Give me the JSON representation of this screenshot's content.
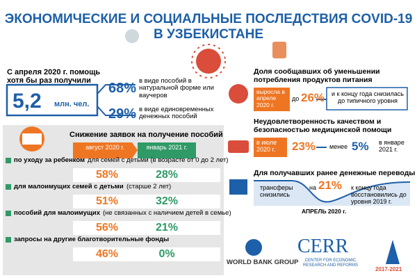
{
  "header": {
    "title_line1": "ЭКОНОМИЧЕСКИЕ  И СОЦИАЛЬНЫЕ ПОСЛЕДСТВИЯ COVID-19",
    "title_line2": "В УЗБЕКИСТАНЕ"
  },
  "assistance": {
    "intro": "С апреля 2020 г. помощь хотя бы раз получили",
    "total": "5,2",
    "unit": "млн. чел.",
    "items": [
      {
        "percent": "68%",
        "text": "в виде пособий в натуральной форме или ваучеров"
      },
      {
        "percent": "29%",
        "text": "в виде единовременных денежных пособий"
      }
    ]
  },
  "applications": {
    "title": "Снижение заявок на получение пособий",
    "columns": [
      "август 2020 г.",
      "январь 2021 г."
    ],
    "rows": [
      {
        "label": "по уходу за ребенком",
        "note": "для семей с детьми (в возрасте от 0 до 2 лет)",
        "august": "58%",
        "january": "28%"
      },
      {
        "label": "для малоимущих семей с детьми",
        "note": "(старше 2 лет)",
        "august": "51%",
        "january": "32%"
      },
      {
        "label": "пособий для малоимущих",
        "note": "(не связанных с наличием детей в семье)",
        "august": "56%",
        "january": "21%"
      },
      {
        "label": "запросы на другие благотворительные фонды",
        "note": null,
        "august": "46%",
        "january": "0%"
      }
    ]
  },
  "food": {
    "title": "Доля сообщавших об уменьшении потребления продуктов питания",
    "rise": "выросла в апреле 2020 г.",
    "to": "до",
    "percent": "26%",
    "after": "и к концу года снизилась до типичного уровня"
  },
  "health": {
    "title": "Неудовлетворенность качеством и безопасностью медицинской помощи",
    "start": "в июле 2020 г.",
    "percent_start": "23%",
    "less": "менее",
    "percent_end": "5%",
    "end": "в январе 2021 г."
  },
  "transfers": {
    "title": "Для получавших ранее денежные переводы",
    "drop": "трансферы снизились",
    "by": "на",
    "percent": "21%",
    "recovery": "к концу года восстановились до уровня 2019 г.",
    "month": "АПРЕЛЬ 2020 г."
  },
  "logos": {
    "world_bank": "WORLD BANK GROUP",
    "cerr": "CERR",
    "cerr_full": "CENTER FOR ECONOMIC RESEARCH AND REFORMS",
    "years": "2017-2021"
  }
}
